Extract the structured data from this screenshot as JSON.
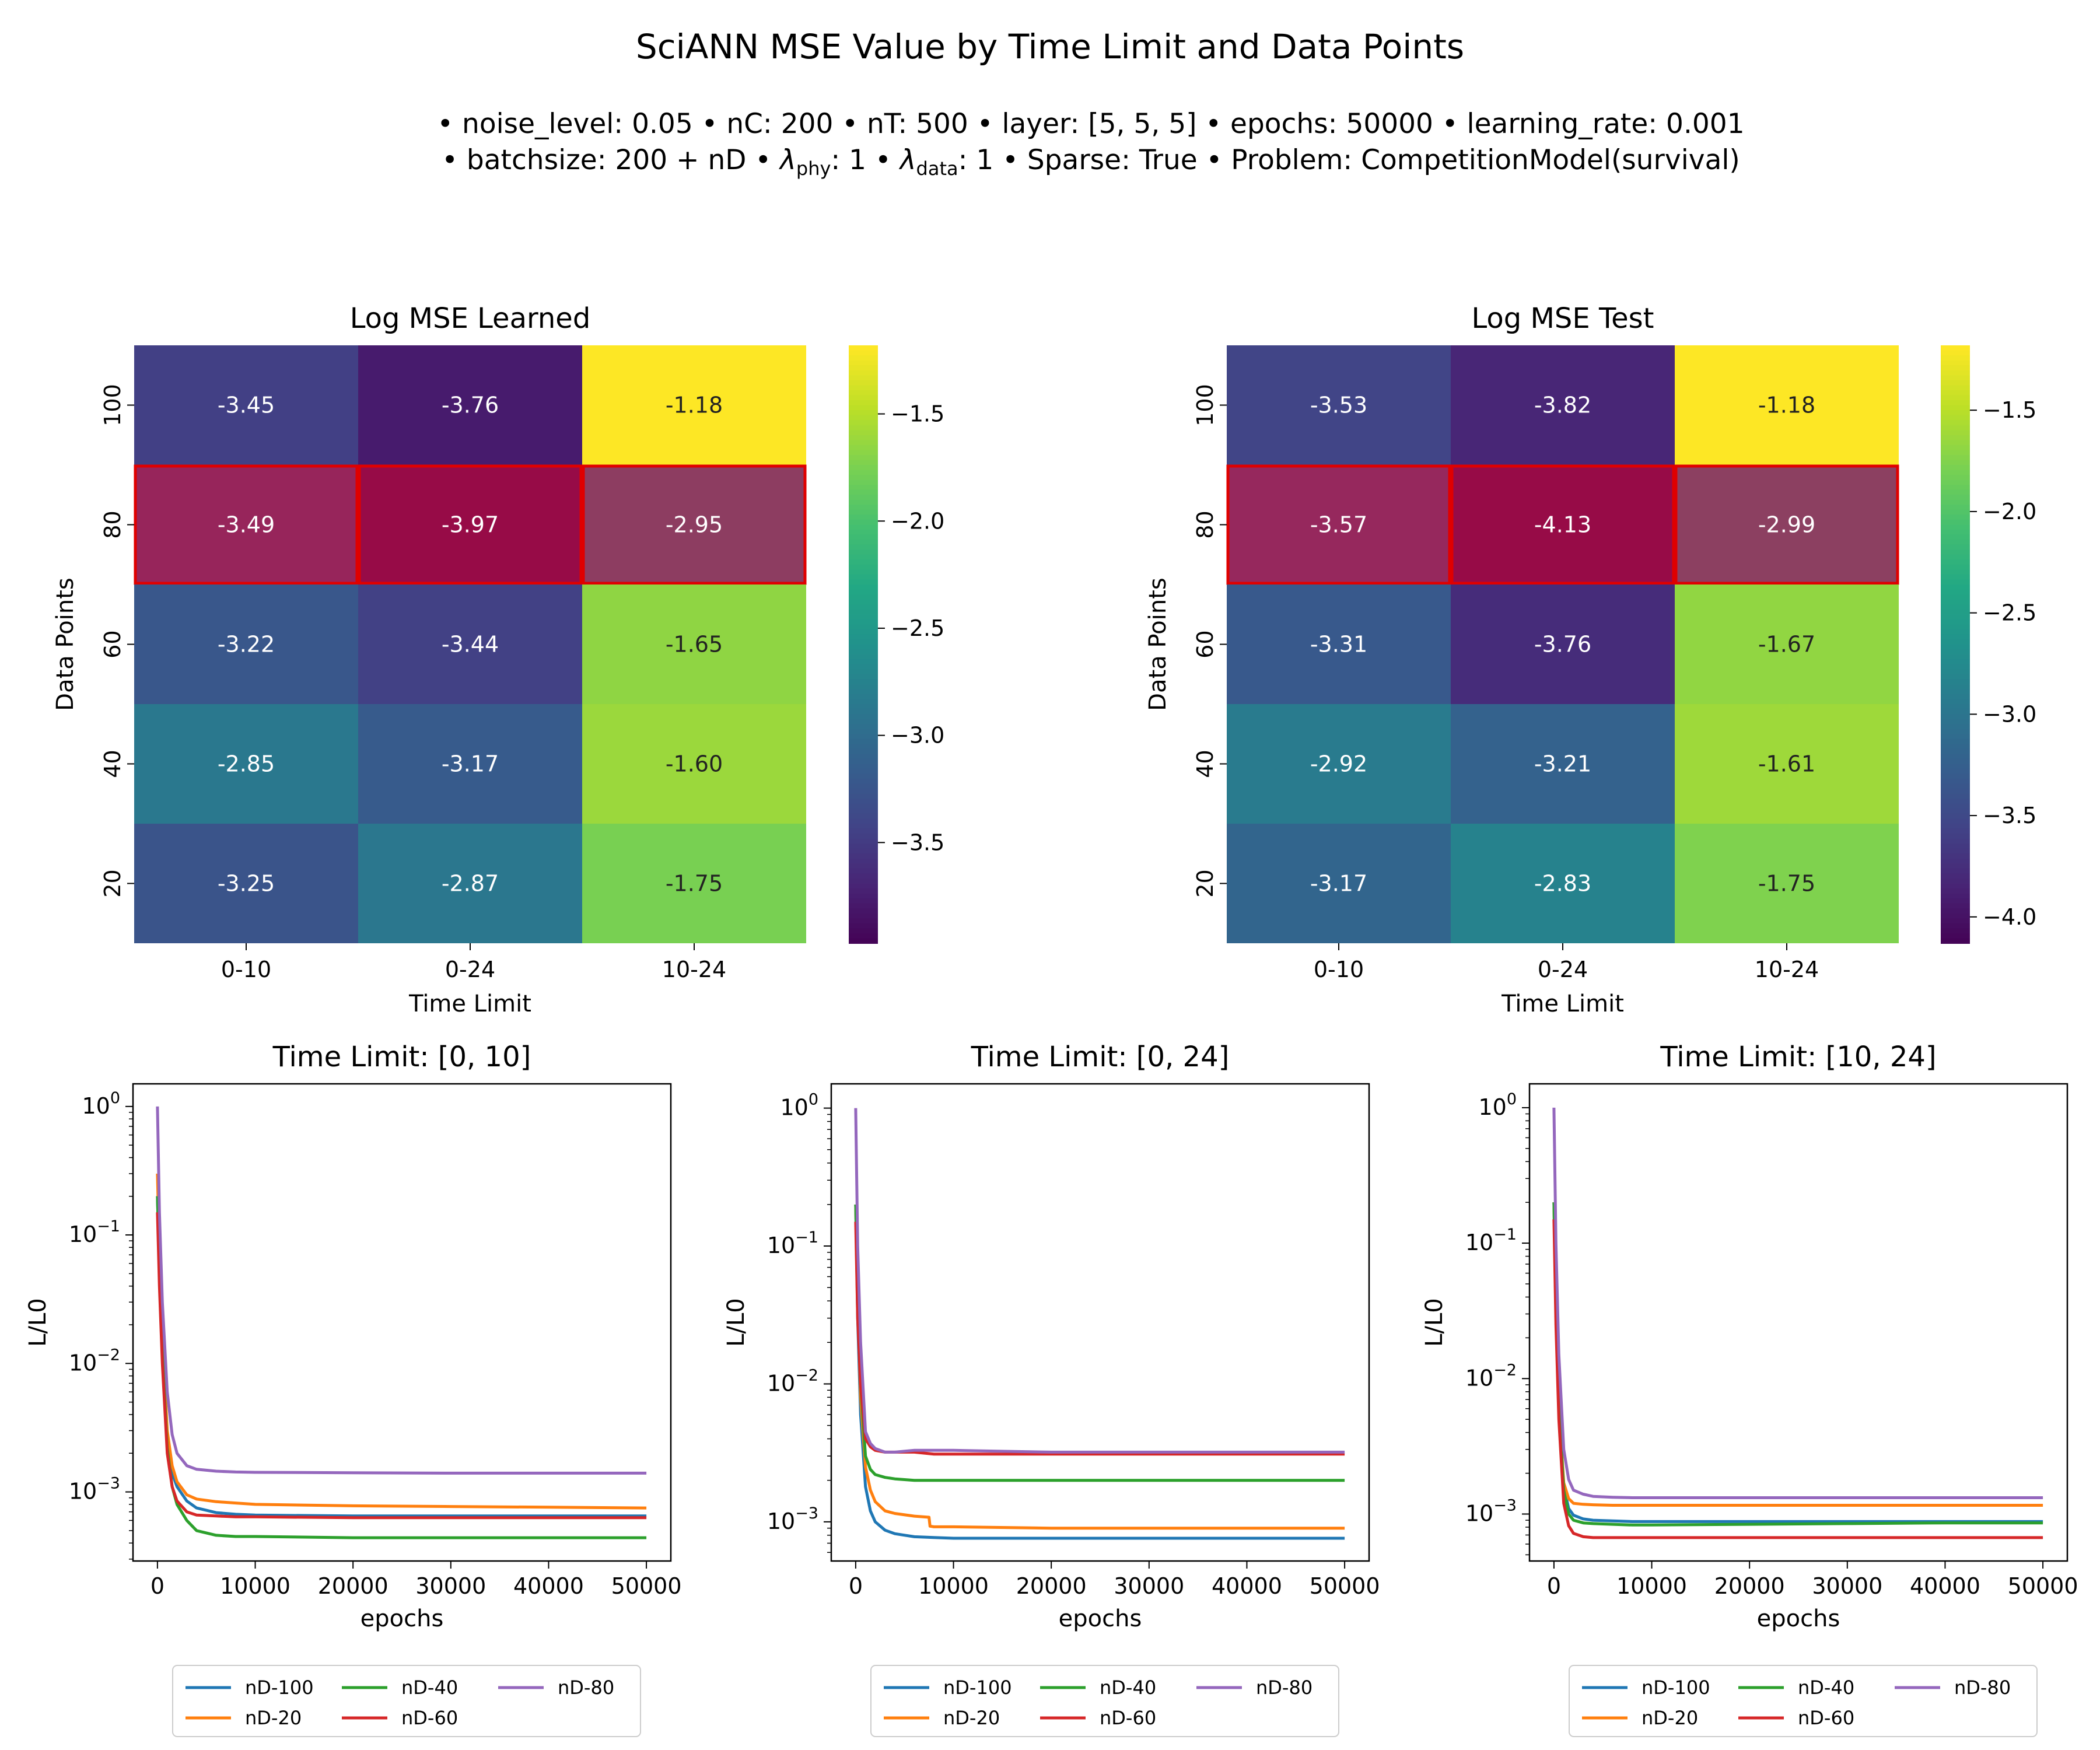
{
  "figure": {
    "title": "SciANN MSE Value by Time Limit and Data Points",
    "subtitle_line1": "• noise_level: 0.05 • nC: 200 • nT: 500 • layer: [5, 5, 5] • epochs: 50000 • learning_rate: 0.001",
    "subtitle_line2": {
      "part1": "• batchsize: 200 + nD • ",
      "lambda": "λ",
      "sub_phy": "phy",
      "part2": ": 1 • ",
      "sub_data": "data",
      "part3": ": 1 • Sparse: True • Problem: CompetitionModel(survival)"
    }
  },
  "colors": {
    "viridis": [
      "#440154",
      "#482475",
      "#414487",
      "#355f8d",
      "#2a788e",
      "#21918c",
      "#22a884",
      "#44bf70",
      "#7ad151",
      "#bddf26",
      "#fde725"
    ],
    "highlight_overlay": "#dc143c",
    "highlight_border": "#e00000",
    "series": {
      "nD-100": "#1f77b4",
      "nD-20": "#ff7f0e",
      "nD-40": "#2ca02c",
      "nD-60": "#d62728",
      "nD-80": "#9467bd"
    }
  },
  "chart_data": [
    {
      "type": "heatmap",
      "title": "Log MSE Learned",
      "xlabel": "Time Limit",
      "ylabel": "Data Points",
      "x_categories": [
        "0-10",
        "0-24",
        "10-24"
      ],
      "y_categories": [
        "100",
        "80",
        "60",
        "40",
        "20"
      ],
      "values": [
        [
          -3.45,
          -3.76,
          -1.18
        ],
        [
          -3.49,
          -3.97,
          -2.95
        ],
        [
          -3.22,
          -3.44,
          -1.65
        ],
        [
          -2.85,
          -3.17,
          -1.6
        ],
        [
          -3.25,
          -2.87,
          -1.75
        ]
      ],
      "labels": [
        [
          "-3.45",
          "-3.76",
          "-1.18"
        ],
        [
          "-3.49",
          "-3.97",
          "-2.95"
        ],
        [
          "-3.22",
          "-3.44",
          "-1.65"
        ],
        [
          "-2.85",
          "-3.17",
          "-1.60"
        ],
        [
          "-3.25",
          "-2.87",
          "-1.75"
        ]
      ],
      "highlighted_row": "80",
      "colorbar": {
        "colormap": "viridis",
        "range": [
          -3.97,
          -1.18
        ],
        "ticks": [
          -1.5,
          -2.0,
          -2.5,
          -3.0,
          -3.5
        ],
        "tick_labels": [
          "−1.5",
          "−2.0",
          "−2.5",
          "−3.0",
          "−3.5"
        ]
      }
    },
    {
      "type": "heatmap",
      "title": "Log MSE Test",
      "xlabel": "Time Limit",
      "ylabel": "Data Points",
      "x_categories": [
        "0-10",
        "0-24",
        "10-24"
      ],
      "y_categories": [
        "100",
        "80",
        "60",
        "40",
        "20"
      ],
      "values": [
        [
          -3.53,
          -3.82,
          -1.18
        ],
        [
          -3.57,
          -4.13,
          -2.99
        ],
        [
          -3.31,
          -3.76,
          -1.67
        ],
        [
          -2.92,
          -3.21,
          -1.61
        ],
        [
          -3.17,
          -2.83,
          -1.75
        ]
      ],
      "labels": [
        [
          "-3.53",
          "-3.82",
          "-1.18"
        ],
        [
          "-3.57",
          "-4.13",
          "-2.99"
        ],
        [
          "-3.31",
          "-3.76",
          "-1.67"
        ],
        [
          "-2.92",
          "-3.21",
          "-1.61"
        ],
        [
          "-3.17",
          "-2.83",
          "-1.75"
        ]
      ],
      "highlighted_row": "80",
      "colorbar": {
        "colormap": "viridis",
        "range": [
          -4.13,
          -1.18
        ],
        "ticks": [
          -1.5,
          -2.0,
          -2.5,
          -3.0,
          -3.5,
          -4.0
        ],
        "tick_labels": [
          "−1.5",
          "−2.0",
          "−2.5",
          "−3.0",
          "−3.5",
          "−4.0"
        ]
      }
    },
    {
      "type": "line",
      "title": "Time Limit: [0, 10]",
      "xlabel": "epochs",
      "ylabel": "L/L0",
      "y_scale": "log",
      "xlim": [
        -2500,
        52500
      ],
      "ylim": [
        0.00029,
        1.5
      ],
      "x_ticks": [
        0,
        10000,
        20000,
        30000,
        40000,
        50000
      ],
      "x_tick_labels": [
        "0",
        "10000",
        "20000",
        "30000",
        "40000",
        "50000"
      ],
      "y_ticks": [
        1,
        0.1,
        0.01,
        0.001
      ],
      "y_tick_labels": [
        {
          "base": "10",
          "exp": "0"
        },
        {
          "base": "10",
          "exp": "−1"
        },
        {
          "base": "10",
          "exp": "−2"
        },
        {
          "base": "10",
          "exp": "−3"
        }
      ],
      "legend": {
        "placement": "below",
        "entries": [
          "nD-100",
          "nD-20",
          "nD-40",
          "nD-60",
          "nD-80"
        ]
      },
      "series": [
        {
          "name": "nD-100",
          "x": [
            0,
            200,
            500,
            1000,
            1500,
            2000,
            3000,
            4000,
            6000,
            8000,
            10000,
            20000,
            30000,
            40000,
            50000
          ],
          "y": [
            0.2,
            0.05,
            0.012,
            0.0025,
            0.0014,
            0.0011,
            0.00085,
            0.00075,
            0.00069,
            0.00067,
            0.00066,
            0.00065,
            0.00065,
            0.00065,
            0.00065
          ]
        },
        {
          "name": "nD-20",
          "x": [
            0,
            200,
            500,
            1000,
            1500,
            2000,
            3000,
            4000,
            6000,
            8000,
            10000,
            20000,
            30000,
            40000,
            50000
          ],
          "y": [
            0.3,
            0.07,
            0.015,
            0.003,
            0.0016,
            0.0012,
            0.00095,
            0.00088,
            0.00084,
            0.00082,
            0.0008,
            0.00078,
            0.00077,
            0.00076,
            0.00075
          ]
        },
        {
          "name": "nD-40",
          "x": [
            0,
            200,
            500,
            1000,
            1500,
            2000,
            3000,
            4000,
            6000,
            8000,
            10000,
            20000,
            30000,
            40000,
            50000
          ],
          "y": [
            0.2,
            0.05,
            0.012,
            0.0022,
            0.0011,
            0.0008,
            0.0006,
            0.0005,
            0.00046,
            0.00045,
            0.00045,
            0.00044,
            0.00044,
            0.00044,
            0.00044
          ]
        },
        {
          "name": "nD-60",
          "x": [
            0,
            200,
            500,
            1000,
            1500,
            2000,
            3000,
            4000,
            6000,
            8000,
            10000,
            20000,
            30000,
            40000,
            50000
          ],
          "y": [
            0.15,
            0.04,
            0.01,
            0.002,
            0.0011,
            0.00085,
            0.0007,
            0.00066,
            0.00065,
            0.00064,
            0.00064,
            0.00063,
            0.00063,
            0.00063,
            0.00063
          ]
        },
        {
          "name": "nD-80",
          "x": [
            0,
            200,
            500,
            1000,
            1500,
            2000,
            3000,
            4000,
            6000,
            8000,
            10000,
            20000,
            30000,
            40000,
            50000
          ],
          "y": [
            1.0,
            0.15,
            0.03,
            0.006,
            0.0028,
            0.002,
            0.0016,
            0.0015,
            0.00145,
            0.00143,
            0.00142,
            0.00141,
            0.0014,
            0.0014,
            0.0014
          ]
        }
      ]
    },
    {
      "type": "line",
      "title": "Time Limit: [0, 24]",
      "xlabel": "epochs",
      "ylabel": "L/L0",
      "y_scale": "log",
      "xlim": [
        -2500,
        52500
      ],
      "ylim": [
        0.00052,
        1.5
      ],
      "x_ticks": [
        0,
        10000,
        20000,
        30000,
        40000,
        50000
      ],
      "x_tick_labels": [
        "0",
        "10000",
        "20000",
        "30000",
        "40000",
        "50000"
      ],
      "y_ticks": [
        1,
        0.1,
        0.01,
        0.001
      ],
      "y_tick_labels": [
        {
          "base": "10",
          "exp": "0"
        },
        {
          "base": "10",
          "exp": "−1"
        },
        {
          "base": "10",
          "exp": "−2"
        },
        {
          "base": "10",
          "exp": "−3"
        }
      ],
      "legend": {
        "placement": "below",
        "entries": [
          "nD-100",
          "nD-20",
          "nD-40",
          "nD-60",
          "nD-80"
        ]
      },
      "series": [
        {
          "name": "nD-100",
          "x": [
            0,
            200,
            500,
            1000,
            1500,
            2000,
            3000,
            4000,
            5000,
            6000,
            8000,
            10000,
            20000,
            30000,
            40000,
            50000
          ],
          "y": [
            0.2,
            0.03,
            0.006,
            0.0018,
            0.0012,
            0.001,
            0.00087,
            0.00082,
            0.0008,
            0.00078,
            0.00077,
            0.00076,
            0.00076,
            0.00076,
            0.00076,
            0.00076
          ]
        },
        {
          "name": "nD-20",
          "x": [
            0,
            200,
            500,
            1000,
            1500,
            2000,
            3000,
            4000,
            6000,
            7500,
            7600,
            8000,
            10000,
            20000,
            30000,
            40000,
            50000
          ],
          "y": [
            0.2,
            0.04,
            0.008,
            0.0025,
            0.0017,
            0.0014,
            0.0012,
            0.00115,
            0.0011,
            0.00108,
            0.00093,
            0.00092,
            0.00092,
            0.0009,
            0.0009,
            0.0009,
            0.0009
          ]
        },
        {
          "name": "nD-40",
          "x": [
            0,
            200,
            500,
            1000,
            1500,
            2000,
            3000,
            4000,
            6000,
            8000,
            10000,
            20000,
            30000,
            40000,
            50000
          ],
          "y": [
            0.2,
            0.04,
            0.01,
            0.003,
            0.0024,
            0.0022,
            0.0021,
            0.00205,
            0.002,
            0.002,
            0.002,
            0.002,
            0.002,
            0.002,
            0.002
          ]
        },
        {
          "name": "nD-60",
          "x": [
            0,
            200,
            500,
            1000,
            1500,
            2000,
            3000,
            4000,
            6000,
            8000,
            10000,
            20000,
            30000,
            40000,
            50000
          ],
          "y": [
            0.15,
            0.03,
            0.01,
            0.004,
            0.0035,
            0.0033,
            0.0032,
            0.0032,
            0.0032,
            0.0031,
            0.0031,
            0.0031,
            0.0031,
            0.0031,
            0.0031
          ]
        },
        {
          "name": "nD-80",
          "x": [
            0,
            200,
            500,
            1000,
            1500,
            2000,
            3000,
            4000,
            6000,
            8000,
            10000,
            20000,
            30000,
            40000,
            50000
          ],
          "y": [
            1.0,
            0.1,
            0.02,
            0.0045,
            0.0037,
            0.0034,
            0.0032,
            0.0032,
            0.0033,
            0.0033,
            0.0033,
            0.0032,
            0.0032,
            0.0032,
            0.0032
          ]
        }
      ]
    },
    {
      "type": "line",
      "title": "Time Limit: [10, 24]",
      "xlabel": "epochs",
      "ylabel": "L/L0",
      "y_scale": "log",
      "xlim": [
        -2500,
        52500
      ],
      "ylim": [
        0.00045,
        1.5
      ],
      "x_ticks": [
        0,
        10000,
        20000,
        30000,
        40000,
        50000
      ],
      "x_tick_labels": [
        "0",
        "10000",
        "20000",
        "30000",
        "40000",
        "50000"
      ],
      "y_ticks": [
        1,
        0.1,
        0.01,
        0.001
      ],
      "y_tick_labels": [
        {
          "base": "10",
          "exp": "0"
        },
        {
          "base": "10",
          "exp": "−1"
        },
        {
          "base": "10",
          "exp": "−2"
        },
        {
          "base": "10",
          "exp": "−3"
        }
      ],
      "legend": {
        "placement": "below",
        "entries": [
          "nD-100",
          "nD-20",
          "nD-40",
          "nD-60",
          "nD-80"
        ]
      },
      "series": [
        {
          "name": "nD-100",
          "x": [
            0,
            200,
            500,
            1000,
            1500,
            2000,
            3000,
            4000,
            6000,
            8000,
            10000,
            20000,
            30000,
            40000,
            50000
          ],
          "y": [
            0.2,
            0.03,
            0.006,
            0.0016,
            0.0011,
            0.00098,
            0.00092,
            0.0009,
            0.00089,
            0.00088,
            0.00088,
            0.00088,
            0.00088,
            0.00088,
            0.00088
          ]
        },
        {
          "name": "nD-20",
          "x": [
            0,
            200,
            500,
            1000,
            1500,
            2000,
            3000,
            4000,
            6000,
            8000,
            10000,
            20000,
            30000,
            40000,
            50000
          ],
          "y": [
            0.2,
            0.03,
            0.006,
            0.0017,
            0.0013,
            0.0012,
            0.00118,
            0.00117,
            0.00116,
            0.00116,
            0.00116,
            0.00116,
            0.00116,
            0.00116,
            0.00116
          ]
        },
        {
          "name": "nD-40",
          "x": [
            0,
            200,
            500,
            1000,
            1500,
            2000,
            3000,
            4000,
            6000,
            8000,
            10000,
            20000,
            30000,
            40000,
            50000
          ],
          "y": [
            0.2,
            0.03,
            0.006,
            0.0015,
            0.001,
            0.0009,
            0.00086,
            0.00085,
            0.00084,
            0.00083,
            0.00083,
            0.00084,
            0.00085,
            0.00086,
            0.00086
          ]
        },
        {
          "name": "nD-60",
          "x": [
            0,
            200,
            500,
            1000,
            1500,
            2000,
            3000,
            4000,
            6000,
            8000,
            10000,
            20000,
            30000,
            40000,
            50000
          ],
          "y": [
            0.15,
            0.025,
            0.005,
            0.0012,
            0.00082,
            0.00072,
            0.00068,
            0.00067,
            0.00067,
            0.00067,
            0.00067,
            0.00067,
            0.00067,
            0.00067,
            0.00067
          ]
        },
        {
          "name": "nD-80",
          "x": [
            0,
            200,
            500,
            1000,
            1500,
            2000,
            3000,
            4000,
            6000,
            8000,
            10000,
            20000,
            30000,
            40000,
            50000
          ],
          "y": [
            1.0,
            0.1,
            0.015,
            0.003,
            0.0018,
            0.0015,
            0.0014,
            0.00135,
            0.00133,
            0.00132,
            0.00132,
            0.00132,
            0.00132,
            0.00132,
            0.00132
          ]
        }
      ]
    }
  ]
}
